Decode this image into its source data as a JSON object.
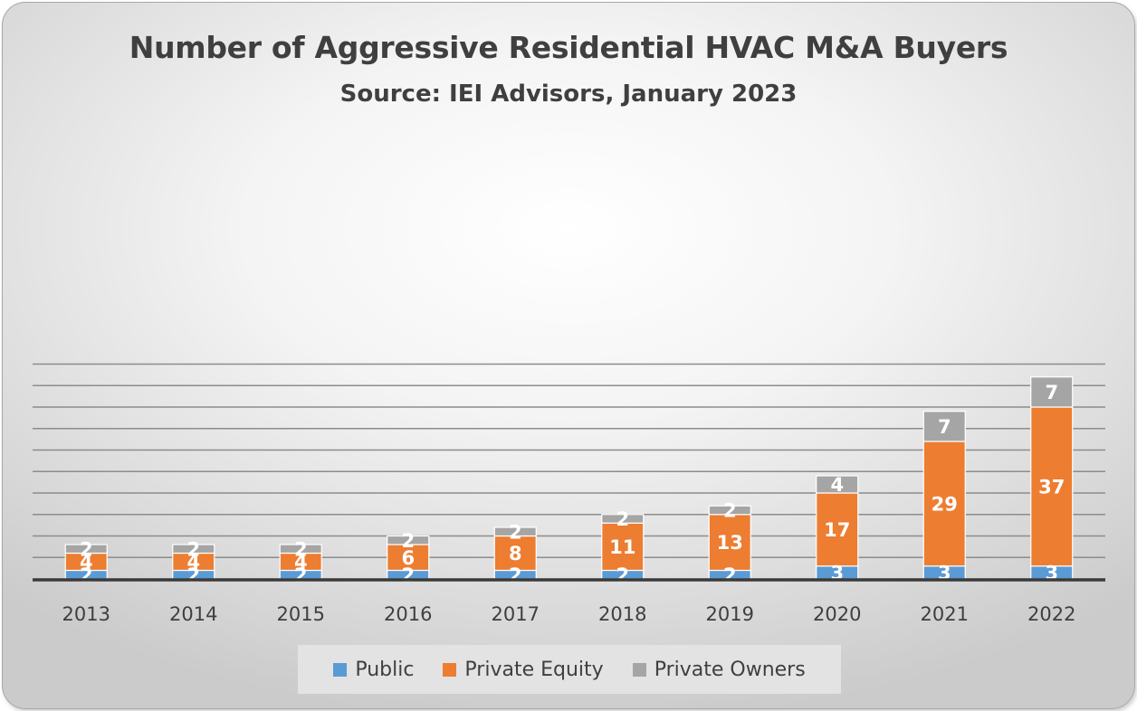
{
  "chart_data": {
    "type": "bar",
    "stacked": true,
    "title": "Number of Aggressive Residential HVAC M&A Buyers",
    "subtitle": "Source: IEI Advisors, January 2023",
    "categories": [
      "2013",
      "2014",
      "2015",
      "2016",
      "2017",
      "2018",
      "2019",
      "2020",
      "2021",
      "2022"
    ],
    "series": [
      {
        "name": "Public",
        "color": "#5b9bd5",
        "values": [
          2,
          2,
          2,
          2,
          2,
          2,
          2,
          3,
          3,
          3
        ]
      },
      {
        "name": "Private Equity",
        "color": "#ed7d31",
        "values": [
          4,
          4,
          4,
          6,
          8,
          11,
          13,
          17,
          29,
          37
        ]
      },
      {
        "name": "Private Owners",
        "color": "#a5a5a5",
        "values": [
          2,
          2,
          2,
          2,
          2,
          2,
          2,
          4,
          7,
          7
        ]
      }
    ],
    "ylim": [
      0,
      50
    ],
    "grid": true,
    "legend_position": "bottom",
    "data_labels": true
  }
}
